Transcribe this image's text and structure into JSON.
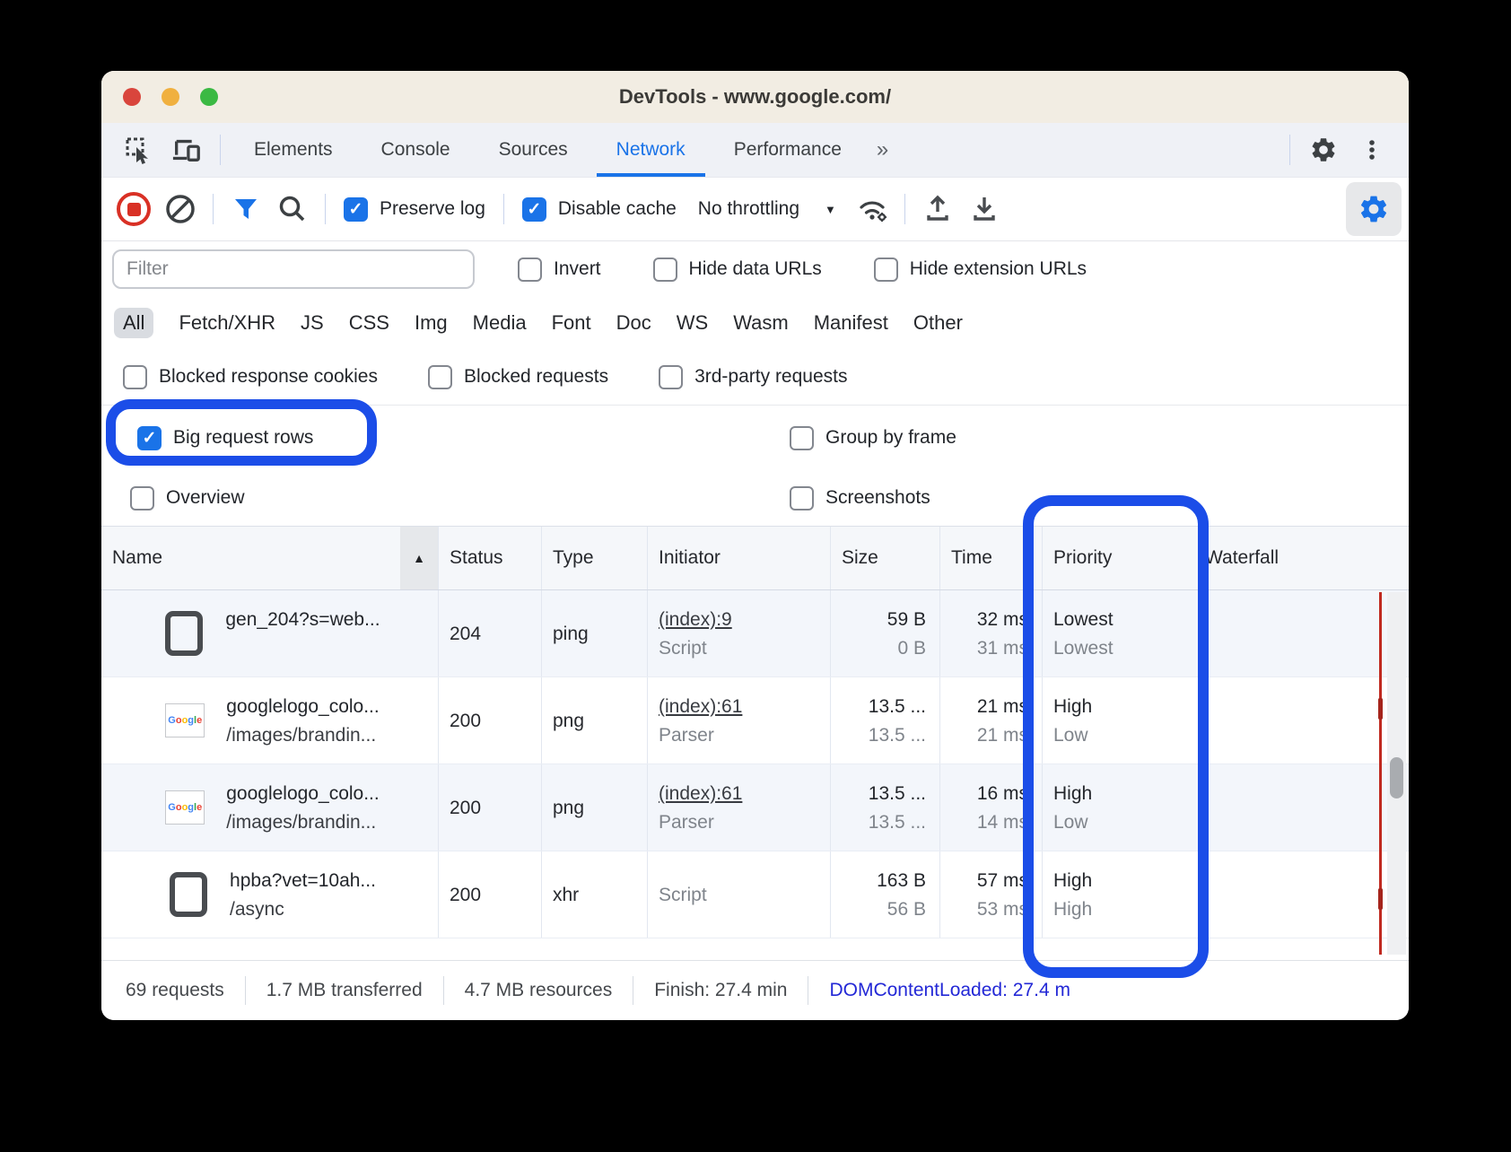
{
  "window": {
    "title": "DevTools - www.google.com/"
  },
  "tabbar": {
    "tabs": [
      "Elements",
      "Console",
      "Sources",
      "Network",
      "Performance"
    ],
    "active_tab": "Network",
    "more_tabs_glyph": "»"
  },
  "toolbar": {
    "preserve_log_label": "Preserve log",
    "disable_cache_label": "Disable cache",
    "throttling_value": "No throttling",
    "caret_glyph": "▼"
  },
  "filter": {
    "placeholder": "Filter",
    "invert_label": "Invert",
    "hide_data_urls_label": "Hide data URLs",
    "hide_extension_urls_label": "Hide extension URLs",
    "chips": [
      "All",
      "Fetch/XHR",
      "JS",
      "CSS",
      "Img",
      "Media",
      "Font",
      "Doc",
      "WS",
      "Wasm",
      "Manifest",
      "Other"
    ],
    "active_chip": "All"
  },
  "options": {
    "blocked_response_cookies_label": "Blocked response cookies",
    "blocked_requests_label": "Blocked requests",
    "third_party_requests_label": "3rd-party requests",
    "big_request_rows_label": "Big request rows",
    "group_by_frame_label": "Group by frame",
    "overview_label": "Overview",
    "screenshots_label": "Screenshots"
  },
  "table": {
    "columns": [
      "Name",
      "Status",
      "Type",
      "Initiator",
      "Size",
      "Time",
      "Priority",
      "Waterfall"
    ],
    "sort_glyph": "▲",
    "rows": [
      {
        "icon": "file",
        "name": "gen_204?s=web...",
        "path": "",
        "status": "204",
        "type": "ping",
        "initiator_link": "(index):9",
        "initiator_sub": "Script",
        "size1": "59 B",
        "size2": "0 B",
        "time1": "32 ms",
        "time2": "31 ms",
        "pri1": "Lowest",
        "pri2": "Lowest"
      },
      {
        "icon": "google",
        "name": "googlelogo_colo...",
        "path": "/images/brandin...",
        "status": "200",
        "type": "png",
        "initiator_link": "(index):61",
        "initiator_sub": "Parser",
        "size1": "13.5 ...",
        "size2": "13.5 ...",
        "time1": "21 ms",
        "time2": "21 ms",
        "pri1": "High",
        "pri2": "Low"
      },
      {
        "icon": "google",
        "name": "googlelogo_colo...",
        "path": "/images/brandin...",
        "status": "200",
        "type": "png",
        "initiator_link": "(index):61",
        "initiator_sub": "Parser",
        "size1": "13.5 ...",
        "size2": "13.5 ...",
        "time1": "16 ms",
        "time2": "14 ms",
        "pri1": "High",
        "pri2": "Low"
      },
      {
        "icon": "file",
        "name": "hpba?vet=10ah...",
        "path": "/async",
        "status": "200",
        "type": "xhr",
        "initiator_link": "",
        "initiator_sub": "Script",
        "size1": "163 B",
        "size2": "56 B",
        "time1": "57 ms",
        "time2": "53 ms",
        "pri1": "High",
        "pri2": "High"
      }
    ]
  },
  "statusbar": {
    "items": [
      "69 requests",
      "1.7 MB transferred",
      "4.7 MB resources",
      "Finish: 27.4 min"
    ],
    "dom_content_loaded": "DOMContentLoaded: 27.4 m"
  },
  "icons": {
    "favicon_letters": "Google",
    "favicon_colors": [
      "#4285F4",
      "#EA4335",
      "#FBBC05",
      "#4285F4",
      "#34A853",
      "#EA4335"
    ]
  },
  "colors": {
    "accent_blue": "#1A73E8",
    "highlight_blue": "#1B4DE8",
    "record_red": "#D93025",
    "waterfall_red": "#C02A20",
    "dcl_blue": "#2328D6",
    "titlebar_bg": "#F2EDE3"
  }
}
